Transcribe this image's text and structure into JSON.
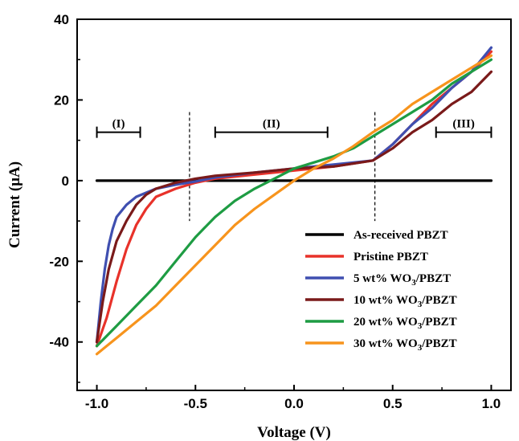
{
  "chart_data": {
    "type": "line",
    "xlabel": "Voltage (V)",
    "ylabel": "Current (μA)",
    "xlim": [
      -1.1,
      1.1
    ],
    "ylim": [
      -52,
      40
    ],
    "xticks": [
      "-1.0",
      "-0.5",
      "0.0",
      "0.5",
      "1.0"
    ],
    "yticks": [
      "40",
      "20",
      "0",
      "-20",
      "-40"
    ],
    "grid": false,
    "legend_position": "bottom-right",
    "region_labels": [
      {
        "label": "(I)",
        "x_start": -1.0,
        "x_end": -0.78,
        "y": 12
      },
      {
        "label": "(II)",
        "x_start": -0.4,
        "x_end": 0.17,
        "y": 12
      },
      {
        "label": "(III)",
        "x_start": 0.72,
        "x_end": 1.0,
        "y": 12
      }
    ],
    "dashed_lines_x": [
      -0.53,
      0.41
    ],
    "series": [
      {
        "name": "As-received PBZT",
        "legend_main": "As-received PBZT",
        "legend_sub": "",
        "legend_tail": "",
        "color": "#000000",
        "x": [
          -1.0,
          -0.9,
          -0.8,
          -0.7,
          -0.6,
          -0.5,
          -0.4,
          -0.3,
          -0.2,
          -0.1,
          0.0,
          0.1,
          0.2,
          0.3,
          0.4,
          0.5,
          0.6,
          0.7,
          0.8,
          0.9,
          1.0
        ],
        "y": [
          0,
          0,
          0,
          0,
          0,
          0,
          0,
          0,
          0,
          0,
          0,
          0,
          0,
          0,
          0,
          0,
          0,
          0,
          0,
          0,
          0
        ]
      },
      {
        "name": "Pristine PBZT",
        "legend_main": "Pristine PBZT",
        "legend_sub": "",
        "legend_tail": "",
        "color": "#e8322a",
        "x": [
          -1.0,
          -0.95,
          -0.9,
          -0.85,
          -0.8,
          -0.75,
          -0.7,
          -0.6,
          -0.5,
          -0.4,
          -0.2,
          0.0,
          0.2,
          0.4,
          0.5,
          0.6,
          0.7,
          0.8,
          0.9,
          1.0
        ],
        "y": [
          -41,
          -34,
          -25,
          -17,
          -11,
          -7,
          -4,
          -2,
          -0.5,
          0.5,
          1.5,
          2.5,
          3.5,
          5,
          9,
          14,
          19,
          23,
          27,
          32
        ]
      },
      {
        "name": "5 wt% WO3/PBZT",
        "legend_main": "5 wt% WO",
        "legend_sub": "3",
        "legend_tail": "/PBZT",
        "color": "#3f4fb0",
        "x": [
          -1.0,
          -0.98,
          -0.96,
          -0.94,
          -0.92,
          -0.9,
          -0.85,
          -0.8,
          -0.7,
          -0.6,
          -0.5,
          -0.4,
          -0.2,
          0.0,
          0.2,
          0.4,
          0.5,
          0.6,
          0.7,
          0.8,
          0.9,
          1.0
        ],
        "y": [
          -40,
          -30,
          -22,
          -16,
          -12,
          -9,
          -6,
          -4,
          -2,
          -1,
          -0.2,
          0.8,
          2,
          3,
          4,
          5,
          9,
          14,
          18,
          23,
          27,
          33
        ]
      },
      {
        "name": "10 wt% WO3/PBZT",
        "legend_main": "10 wt% WO",
        "legend_sub": "3",
        "legend_tail": "/PBZT",
        "color": "#7a1a1a",
        "x": [
          -1.0,
          -0.97,
          -0.94,
          -0.9,
          -0.85,
          -0.8,
          -0.75,
          -0.7,
          -0.6,
          -0.5,
          -0.4,
          -0.2,
          0.0,
          0.2,
          0.4,
          0.5,
          0.6,
          0.7,
          0.8,
          0.9,
          1.0
        ],
        "y": [
          -40,
          -30,
          -22,
          -15,
          -10,
          -6,
          -3.5,
          -2,
          -0.5,
          0.5,
          1.2,
          2,
          3,
          3.5,
          5,
          8,
          12,
          15,
          19,
          22,
          27
        ]
      },
      {
        "name": "20 wt% WO3/PBZT",
        "legend_main": "20 wt% WO",
        "legend_sub": "3",
        "legend_tail": "/PBZT",
        "color": "#1e9c43",
        "x": [
          -1.0,
          -0.9,
          -0.8,
          -0.7,
          -0.6,
          -0.5,
          -0.4,
          -0.3,
          -0.2,
          -0.1,
          0.0,
          0.1,
          0.2,
          0.3,
          0.4,
          0.5,
          0.6,
          0.7,
          0.8,
          0.9,
          1.0
        ],
        "y": [
          -41,
          -36,
          -31,
          -26,
          -20,
          -14,
          -9,
          -5,
          -2,
          0.5,
          3,
          4.5,
          6,
          8,
          11,
          14,
          17,
          20,
          24,
          27,
          30
        ]
      },
      {
        "name": "30 wt% WO3/PBZT",
        "legend_main": "30 wt% WO",
        "legend_sub": "3",
        "legend_tail": "/PBZT",
        "color": "#f7941d",
        "x": [
          -1.0,
          -0.9,
          -0.8,
          -0.7,
          -0.6,
          -0.5,
          -0.4,
          -0.3,
          -0.2,
          -0.1,
          0.0,
          0.1,
          0.2,
          0.3,
          0.4,
          0.5,
          0.6,
          0.7,
          0.8,
          0.9,
          1.0
        ],
        "y": [
          -43,
          -39,
          -35,
          -31,
          -26,
          -21,
          -16,
          -11,
          -7,
          -3.5,
          0,
          3,
          5.5,
          8.5,
          12,
          15,
          19,
          22,
          25,
          28,
          31
        ]
      }
    ]
  }
}
